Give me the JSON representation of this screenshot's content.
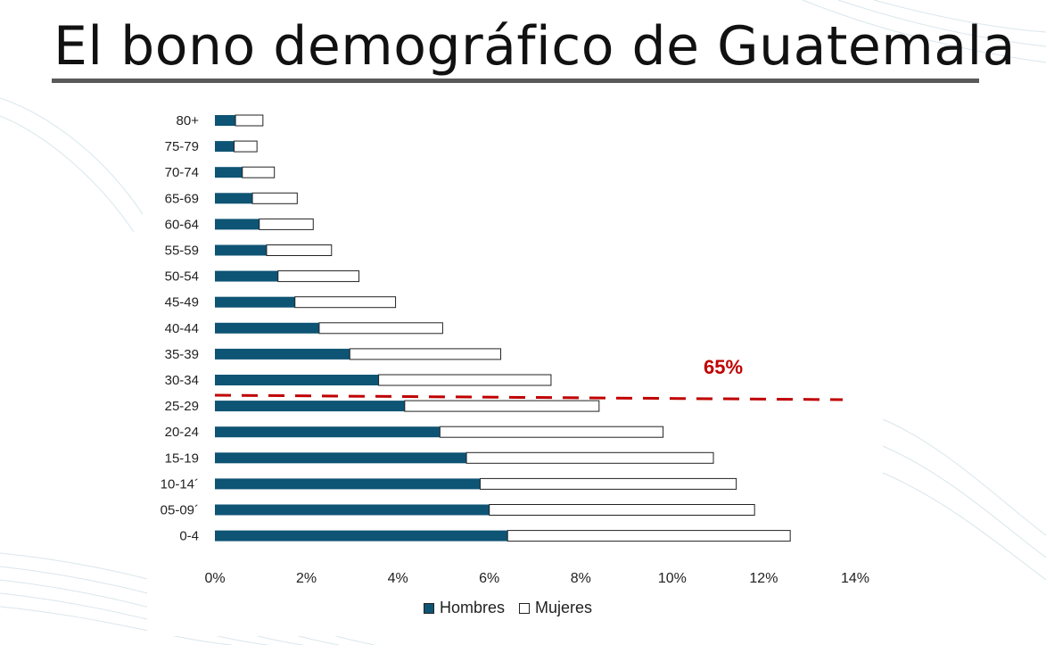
{
  "title": "El bono demográfico de Guatemala",
  "colors": {
    "hombres": "#0e5474",
    "mujeres": "#ffffff",
    "annotation": "#c00000",
    "bar_edge": "#222222"
  },
  "chart_data": {
    "type": "bar",
    "orientation": "horizontal",
    "stacked": true,
    "categories": [
      "80+",
      "75-79",
      "70-74",
      "65-69",
      "60-64",
      "55-59",
      "50-54",
      "45-49",
      "40-44",
      "35-39",
      "30-34",
      "25-29",
      "20-24",
      "15-19",
      "10-14´",
      "05-09´",
      "0-4"
    ],
    "series": [
      {
        "name": "Hombres",
        "values": [
          0.45,
          0.42,
          0.6,
          0.82,
          0.97,
          1.13,
          1.38,
          1.75,
          2.28,
          2.95,
          3.58,
          4.15,
          4.92,
          5.5,
          5.8,
          6.0,
          6.4
        ]
      },
      {
        "name": "Mujeres",
        "values": [
          0.6,
          0.5,
          0.7,
          0.98,
          1.18,
          1.42,
          1.77,
          2.2,
          2.7,
          3.3,
          3.77,
          4.25,
          4.88,
          5.4,
          5.6,
          5.8,
          6.18
        ]
      }
    ],
    "xlim": [
      0,
      14
    ],
    "xticks": [
      "0%",
      "2%",
      "4%",
      "6%",
      "8%",
      "10%",
      "12%",
      "14%"
    ],
    "grid": false,
    "legend": "bottom",
    "annotation": {
      "text": "65%"
    }
  }
}
